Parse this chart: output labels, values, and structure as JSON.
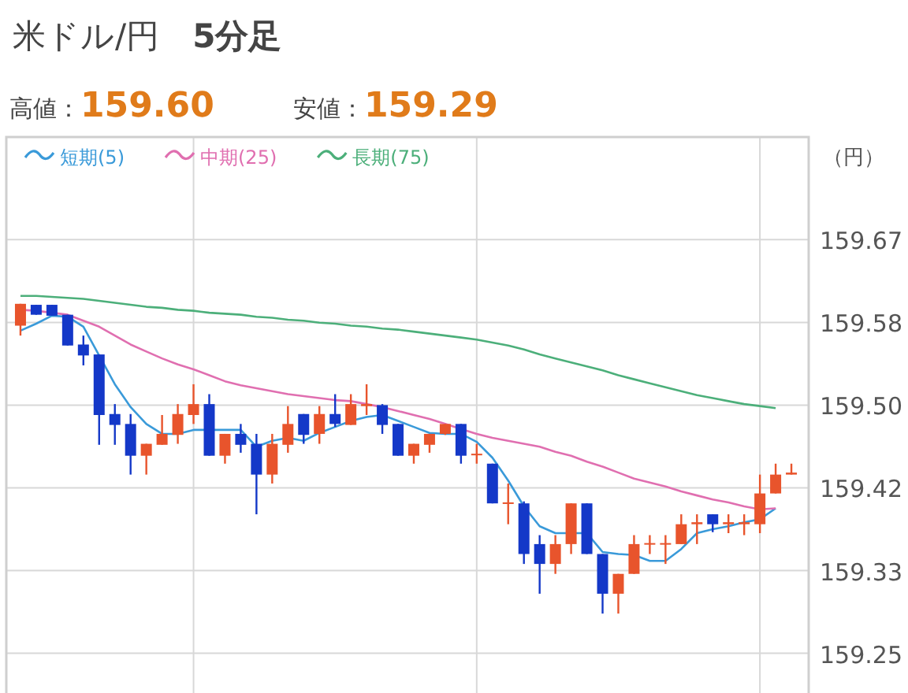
{
  "chart_data": {
    "type": "candlestick",
    "title": "米ドル/円　**5分足**",
    "annotations": [
      "高値：**159.60**",
      "安値：**159.29**"
    ],
    "ylabel": "（円）",
    "categories": [
      null,
      null,
      null,
      null,
      null,
      null,
      null,
      null,
      null,
      null,
      null,
      null,
      null,
      null,
      null,
      null,
      null,
      null,
      null,
      null,
      null,
      null,
      null,
      null,
      null,
      null,
      null,
      null,
      null,
      null,
      null,
      null,
      null,
      null,
      null,
      null,
      null,
      null,
      null,
      null,
      null,
      null,
      null,
      null,
      null,
      null,
      null,
      null,
      null,
      null
    ],
    "ohlc": [
      [
        159.58,
        159.602,
        159.57,
        159.602
      ],
      [
        159.601,
        159.601,
        159.591,
        159.591
      ],
      [
        159.601,
        159.601,
        159.59,
        159.59
      ],
      [
        159.591,
        159.591,
        159.56,
        159.56
      ],
      [
        159.561,
        159.57,
        159.54,
        159.55
      ],
      [
        159.551,
        159.551,
        159.46,
        159.49
      ],
      [
        159.491,
        159.501,
        159.46,
        159.48
      ],
      [
        159.481,
        159.491,
        159.43,
        159.449
      ],
      [
        159.449,
        159.461,
        159.43,
        159.461
      ],
      [
        159.46,
        159.49,
        159.46,
        159.471
      ],
      [
        159.47,
        159.501,
        159.461,
        159.491
      ],
      [
        159.49,
        159.521,
        159.481,
        159.501
      ],
      [
        159.501,
        159.511,
        159.449,
        159.449
      ],
      [
        159.449,
        159.471,
        159.441,
        159.471
      ],
      [
        159.471,
        159.481,
        159.452,
        159.46
      ],
      [
        159.461,
        159.471,
        159.39,
        159.43
      ],
      [
        159.43,
        159.471,
        159.421,
        159.461
      ],
      [
        159.46,
        159.499,
        159.452,
        159.481
      ],
      [
        159.491,
        159.491,
        159.461,
        159.47
      ],
      [
        159.471,
        159.499,
        159.461,
        159.491
      ],
      [
        159.491,
        159.511,
        159.478,
        159.481
      ],
      [
        159.48,
        159.511,
        159.48,
        159.501
      ],
      [
        159.499,
        159.521,
        159.49,
        159.501
      ],
      [
        159.5,
        159.501,
        159.471,
        159.48
      ],
      [
        159.481,
        159.481,
        159.449,
        159.449
      ],
      [
        159.449,
        159.461,
        159.441,
        159.461
      ],
      [
        159.46,
        159.471,
        159.452,
        159.471
      ],
      [
        159.471,
        159.481,
        159.47,
        159.481
      ],
      [
        159.481,
        159.481,
        159.441,
        159.449
      ],
      [
        159.45,
        159.461,
        159.441,
        159.451
      ],
      [
        159.441,
        159.441,
        159.401,
        159.401
      ],
      [
        159.401,
        159.421,
        159.38,
        159.402
      ],
      [
        159.401,
        159.403,
        159.34,
        159.35
      ],
      [
        159.36,
        159.369,
        159.31,
        159.34
      ],
      [
        159.34,
        159.369,
        159.33,
        159.36
      ],
      [
        159.36,
        159.401,
        159.35,
        159.401
      ],
      [
        159.401,
        159.401,
        159.35,
        159.35
      ],
      [
        159.35,
        159.35,
        159.29,
        159.31
      ],
      [
        159.31,
        159.33,
        159.29,
        159.33
      ],
      [
        159.33,
        159.369,
        159.33,
        159.36
      ],
      [
        159.36,
        159.369,
        159.35,
        159.361
      ],
      [
        159.36,
        159.369,
        159.34,
        159.361
      ],
      [
        159.36,
        159.39,
        159.36,
        159.38
      ],
      [
        159.38,
        159.39,
        159.36,
        159.382
      ],
      [
        159.39,
        159.39,
        159.372,
        159.38
      ],
      [
        159.38,
        159.39,
        159.371,
        159.382
      ],
      [
        159.38,
        159.39,
        159.369,
        159.382
      ],
      [
        159.38,
        159.43,
        159.371,
        159.411
      ],
      [
        159.411,
        159.441,
        159.411,
        159.43
      ],
      [
        159.43,
        159.441,
        159.43,
        159.432
      ]
    ],
    "colors": [
      "#e8542c",
      "#1438c8",
      "#1438c8",
      "#1438c8",
      "#1438c8",
      "#1438c8",
      "#1438c8",
      "#1438c8",
      "#e8542c",
      "#e8542c",
      "#e8542c",
      "#e8542c",
      "#1438c8",
      "#e8542c",
      "#1438c8",
      "#1438c8",
      "#e8542c",
      "#e8542c",
      "#1438c8",
      "#e8542c",
      "#1438c8",
      "#e8542c",
      "#e8542c",
      "#1438c8",
      "#1438c8",
      "#e8542c",
      "#e8542c",
      "#e8542c",
      "#1438c8",
      "#e8542c",
      "#1438c8",
      "#e8542c",
      "#1438c8",
      "#1438c8",
      "#e8542c",
      "#e8542c",
      "#1438c8",
      "#1438c8",
      "#e8542c",
      "#e8542c",
      "#e8542c",
      "#e8542c",
      "#e8542c",
      "#e8542c",
      "#1438c8",
      "#e8542c",
      "#e8542c",
      "#e8542c",
      "#e8542c",
      "#e8542c"
    ],
    "series": [
      {
        "name": "短期(5)",
        "type": "line",
        "color": "#3a9ad9",
        "values": [
          159.575,
          159.582,
          159.59,
          159.589,
          159.579,
          159.55,
          159.521,
          159.498,
          159.481,
          159.471,
          159.471,
          159.475,
          159.475,
          159.475,
          159.475,
          159.458,
          159.464,
          159.467,
          159.464,
          159.472,
          159.478,
          159.484,
          159.488,
          159.49,
          159.484,
          159.478,
          159.472,
          159.471,
          159.471,
          159.463,
          159.447,
          159.424,
          159.398,
          159.378,
          159.371,
          159.371,
          159.371,
          159.352,
          159.35,
          159.349,
          159.343,
          159.343,
          159.355,
          159.371,
          159.375,
          159.378,
          159.382,
          159.385,
          159.396,
          null
        ]
      },
      {
        "name": "中期(25)",
        "type": "line",
        "color": "#e06fb0",
        "values": [
          159.596,
          159.595,
          159.593,
          159.591,
          159.585,
          159.579,
          159.57,
          159.561,
          159.554,
          159.547,
          159.541,
          159.536,
          159.53,
          159.524,
          159.52,
          159.517,
          159.514,
          159.511,
          159.509,
          159.507,
          159.505,
          159.504,
          159.501,
          159.498,
          159.494,
          159.49,
          159.486,
          159.481,
          159.476,
          159.471,
          159.467,
          159.464,
          159.461,
          159.458,
          159.453,
          159.449,
          159.443,
          159.438,
          159.432,
          159.426,
          159.422,
          159.418,
          159.413,
          159.409,
          159.405,
          159.402,
          159.398,
          159.395,
          159.396,
          null
        ]
      },
      {
        "name": "長期(75)",
        "type": "line",
        "color": "#4caf7a",
        "values": [
          159.61,
          159.61,
          159.609,
          159.608,
          159.607,
          159.605,
          159.603,
          159.601,
          159.599,
          159.598,
          159.596,
          159.595,
          159.593,
          159.592,
          159.591,
          159.589,
          159.588,
          159.586,
          159.585,
          159.583,
          159.582,
          159.58,
          159.579,
          159.577,
          159.576,
          159.574,
          159.572,
          159.57,
          159.568,
          159.566,
          159.563,
          159.56,
          159.556,
          159.551,
          159.547,
          159.543,
          159.539,
          159.535,
          159.53,
          159.526,
          159.522,
          159.518,
          159.514,
          159.51,
          159.507,
          159.504,
          159.501,
          159.499,
          159.497,
          null
        ]
      }
    ],
    "ylim": [
      159.21,
      159.77
    ],
    "yticks": [
      {
        "value": 159.6667,
        "label": "159.67"
      },
      {
        "value": 159.5833,
        "label": "159.58"
      },
      {
        "value": 159.5,
        "label": "159.50"
      },
      {
        "value": 159.4167,
        "label": "159.42"
      },
      {
        "value": 159.3333,
        "label": "159.33"
      },
      {
        "value": 159.25,
        "label": "159.25"
      }
    ],
    "grid": true,
    "legend": "top left",
    "line_style": "solid",
    "tick_labels": "y"
  }
}
